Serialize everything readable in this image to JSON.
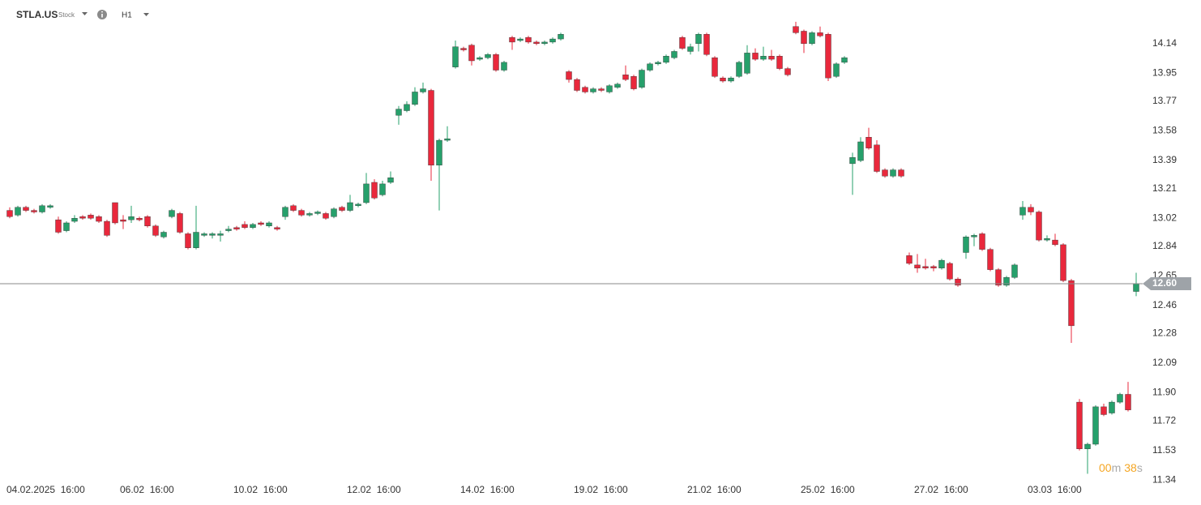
{
  "toolbar": {
    "symbol": "STLA.US",
    "asset_type": "Stock",
    "interval": "H1"
  },
  "chart_data": {
    "type": "candlestick",
    "categories": [
      "04.02.2025  16:00",
      null,
      null,
      null,
      null,
      null,
      null,
      null,
      null,
      null,
      null,
      null,
      null,
      null,
      "06.02  16:00",
      null,
      null,
      null,
      null,
      null,
      null,
      null,
      null,
      null,
      null,
      null,
      null,
      null,
      "10.02  16:00",
      null,
      null,
      null,
      null,
      null,
      null,
      null,
      null,
      null,
      null,
      null,
      null,
      null,
      "12.02  16:00",
      null,
      null,
      null,
      null,
      null,
      null,
      null,
      null,
      null,
      null,
      null,
      null,
      null,
      "14.02  16:00",
      null,
      null,
      null,
      null,
      null,
      null,
      null,
      null,
      null,
      null,
      null,
      null,
      null,
      "19.02  16:00",
      null,
      null,
      null,
      null,
      null,
      null,
      null,
      null,
      null,
      null,
      null,
      null,
      null,
      "21.02  16:00",
      null,
      null,
      null,
      null,
      null,
      null,
      null,
      null,
      null,
      null,
      null,
      null,
      null,
      "25.02  16:00",
      null,
      null,
      null,
      null,
      null,
      null,
      null,
      null,
      null,
      null,
      null,
      null,
      null,
      "27.02  16:00",
      null,
      null,
      null,
      null,
      null,
      null,
      null,
      null,
      null,
      null,
      null,
      null,
      null,
      "03.03  16:00",
      null,
      null,
      null,
      null,
      null,
      null,
      null,
      null,
      null,
      null,
      null,
      null,
      null
    ],
    "open": [
      13.07,
      13.04,
      13.09,
      13.07,
      13.06,
      13.09,
      13.01,
      12.94,
      13.0,
      13.03,
      13.04,
      13.03,
      13.0,
      13.12,
      13.01,
      13.01,
      13.02,
      13.03,
      12.97,
      12.9,
      13.03,
      13.05,
      12.92,
      12.83,
      12.91,
      12.91,
      12.91,
      12.94,
      12.96,
      12.98,
      12.96,
      12.99,
      12.97,
      12.96,
      13.03,
      13.1,
      13.07,
      13.04,
      13.05,
      13.05,
      13.03,
      13.09,
      13.07,
      13.1,
      13.12,
      13.25,
      13.17,
      13.25,
      13.68,
      13.71,
      13.75,
      13.83,
      13.84,
      13.36,
      13.52,
      13.99,
      14.11,
      14.13,
      14.04,
      14.05,
      14.07,
      13.97,
      14.18,
      14.16,
      14.18,
      14.15,
      14.14,
      14.15,
      14.17,
      13.96,
      13.91,
      13.86,
      13.83,
      13.85,
      13.83,
      13.86,
      13.94,
      13.93,
      13.86,
      13.97,
      14.01,
      14.02,
      14.05,
      14.18,
      14.09,
      14.14,
      14.2,
      14.05,
      13.92,
      13.9,
      13.93,
      13.95,
      14.08,
      14.04,
      14.06,
      14.06,
      13.98,
      14.25,
      14.22,
      14.14,
      14.21,
      14.2,
      13.93,
      14.02,
      13.37,
      13.39,
      13.54,
      13.49,
      13.33,
      13.29,
      13.33,
      12.78,
      12.72,
      12.71,
      12.71,
      12.7,
      12.73,
      12.63,
      12.8,
      12.9,
      12.92,
      12.82,
      12.69,
      12.59,
      12.64,
      13.04,
      13.09,
      13.06,
      12.88,
      12.88,
      12.85,
      12.62,
      11.84,
      11.54,
      11.57,
      11.81,
      11.77,
      11.84,
      11.89,
      12.55
    ],
    "high": [
      13.09,
      13.1,
      13.1,
      13.08,
      13.11,
      13.11,
      13.03,
      13.0,
      13.04,
      13.04,
      13.05,
      13.04,
      13.01,
      13.12,
      13.04,
      13.1,
      13.03,
      13.04,
      12.98,
      12.94,
      13.08,
      13.06,
      12.93,
      13.1,
      12.93,
      12.93,
      12.94,
      12.97,
      12.97,
      13.0,
      12.99,
      13.0,
      13.0,
      12.97,
      13.1,
      13.11,
      13.08,
      13.06,
      13.07,
      13.06,
      13.09,
      13.1,
      13.17,
      13.12,
      13.31,
      13.27,
      13.26,
      13.32,
      13.74,
      13.77,
      13.86,
      13.89,
      13.85,
      13.53,
      13.61,
      14.16,
      14.12,
      14.14,
      14.06,
      14.08,
      14.08,
      14.03,
      14.19,
      14.18,
      14.19,
      14.16,
      14.16,
      14.18,
      14.21,
      13.97,
      13.92,
      13.87,
      13.86,
      13.86,
      13.88,
      13.89,
      14.0,
      13.94,
      13.98,
      14.02,
      14.03,
      14.07,
      14.1,
      14.19,
      14.14,
      14.21,
      14.21,
      14.06,
      13.93,
      13.93,
      14.03,
      14.13,
      14.11,
      14.12,
      14.1,
      14.07,
      13.99,
      14.28,
      14.23,
      14.22,
      14.25,
      14.21,
      14.02,
      14.06,
      13.44,
      13.54,
      13.6,
      13.52,
      13.34,
      13.34,
      13.34,
      12.8,
      12.79,
      12.76,
      12.72,
      12.76,
      12.74,
      12.64,
      12.91,
      12.92,
      12.93,
      12.83,
      12.7,
      12.65,
      12.73,
      13.13,
      13.11,
      13.07,
      12.91,
      12.92,
      12.86,
      12.63,
      11.86,
      11.58,
      11.82,
      11.83,
      11.85,
      11.9,
      11.97,
      12.67
    ],
    "low": [
      13.02,
      13.03,
      13.06,
      13.05,
      13.05,
      13.08,
      12.92,
      12.93,
      12.99,
      13.01,
      13.01,
      12.99,
      12.9,
      12.98,
      12.95,
      12.99,
      13.0,
      12.96,
      12.9,
      12.89,
      13.02,
      12.92,
      12.82,
      12.82,
      12.9,
      12.89,
      12.87,
      12.93,
      12.94,
      12.95,
      12.95,
      12.97,
      12.96,
      12.94,
      13.01,
      13.06,
      13.03,
      13.03,
      13.04,
      13.01,
      13.02,
      13.06,
      13.06,
      13.09,
      13.11,
      13.14,
      13.16,
      13.24,
      13.62,
      13.7,
      13.74,
      13.82,
      13.26,
      13.07,
      13.51,
      13.98,
      14.09,
      14.0,
      14.03,
      14.04,
      13.96,
      13.96,
      14.1,
      14.15,
      14.14,
      14.13,
      14.13,
      14.14,
      14.16,
      13.89,
      13.83,
      13.82,
      13.82,
      13.83,
      13.82,
      13.85,
      13.9,
      13.84,
      13.85,
      13.96,
      14.0,
      14.01,
      14.04,
      14.1,
      14.07,
      14.09,
      14.06,
      13.92,
      13.89,
      13.89,
      13.92,
      13.94,
      14.03,
      14.03,
      14.03,
      13.97,
      13.93,
      14.2,
      14.08,
      14.13,
      14.18,
      13.9,
      13.92,
      14.01,
      13.17,
      13.38,
      13.46,
      13.31,
      13.28,
      13.28,
      13.28,
      12.72,
      12.67,
      12.69,
      12.68,
      12.69,
      12.62,
      12.58,
      12.76,
      12.84,
      12.81,
      12.68,
      12.58,
      12.58,
      12.63,
      13.01,
      13.04,
      12.87,
      12.87,
      12.84,
      12.61,
      12.22,
      11.53,
      11.38,
      11.56,
      11.75,
      11.76,
      11.83,
      11.78,
      12.52
    ],
    "close": [
      13.03,
      13.09,
      13.07,
      13.06,
      13.1,
      13.1,
      12.93,
      12.99,
      13.02,
      13.02,
      13.02,
      13.0,
      12.91,
      12.99,
      13.0,
      13.03,
      13.01,
      12.97,
      12.91,
      12.93,
      13.07,
      12.93,
      12.83,
      12.93,
      12.92,
      12.92,
      12.92,
      12.95,
      12.95,
      12.96,
      12.98,
      12.98,
      12.99,
      12.95,
      13.09,
      13.07,
      13.04,
      13.05,
      13.06,
      13.02,
      13.08,
      13.07,
      13.12,
      13.11,
      13.24,
      13.15,
      13.24,
      13.28,
      13.72,
      13.75,
      13.83,
      13.85,
      13.36,
      13.52,
      13.53,
      14.12,
      14.1,
      14.03,
      14.05,
      14.07,
      13.97,
      14.02,
      14.15,
      14.17,
      14.15,
      14.14,
      14.15,
      14.17,
      14.2,
      13.91,
      13.84,
      13.83,
      13.85,
      13.84,
      13.87,
      13.88,
      13.91,
      13.85,
      13.97,
      14.01,
      14.02,
      14.06,
      14.09,
      14.11,
      14.12,
      14.2,
      14.07,
      13.93,
      13.9,
      13.92,
      14.02,
      14.08,
      14.04,
      14.06,
      14.04,
      13.98,
      13.94,
      14.21,
      14.14,
      14.21,
      14.19,
      13.92,
      14.01,
      14.05,
      13.41,
      13.51,
      13.47,
      13.32,
      13.29,
      13.33,
      13.29,
      12.73,
      12.7,
      12.7,
      12.7,
      12.75,
      12.63,
      12.59,
      12.9,
      12.91,
      12.82,
      12.69,
      12.59,
      12.64,
      12.72,
      13.09,
      13.06,
      12.88,
      12.89,
      12.85,
      12.62,
      12.33,
      11.54,
      11.57,
      11.81,
      11.76,
      11.84,
      11.89,
      11.79,
      12.6
    ],
    "up_color": "#26a06b",
    "down_color": "#e9283c",
    "ylim": [
      11.31,
      14.42
    ],
    "yticks": [
      14.14,
      13.95,
      13.77,
      13.58,
      13.39,
      13.21,
      13.02,
      12.84,
      12.65,
      12.46,
      12.28,
      12.09,
      {
        "value": 11.9,
        "label": "11.90"
      },
      11.72,
      11.53,
      11.34
    ],
    "last_price": {
      "value": 12.6,
      "label": "12.60"
    },
    "last_price_color": "#9ea3a8",
    "countdown": [
      "00",
      "m",
      "38",
      "s"
    ]
  }
}
